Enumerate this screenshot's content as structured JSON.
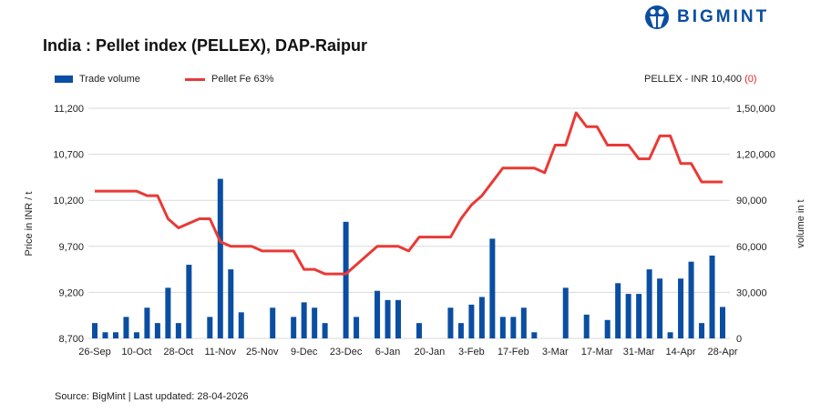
{
  "title": "India : Pellet index (PELLEX), DAP-Raipur",
  "logo_text": "BIGMINT",
  "pellex_label": "PELLEX - INR 10,400 ",
  "pellex_change": "(0)",
  "source": "Source: BigMint | Last updated: 28-04-2026",
  "colors": {
    "bar": "#0a4ea2",
    "line": "#e83a36",
    "change": "#e8232a"
  },
  "chart_data": {
    "type": "bar+line",
    "title": "India : Pellet index (PELLEX), DAP-Raipur",
    "legend": [
      "Trade volume",
      "Pellet Fe 63%"
    ],
    "legend_placement": "top-left",
    "x_tick_labels": [
      "26-Sep",
      "10-Oct",
      "28-Oct",
      "11-Nov",
      "25-Nov",
      "9-Dec",
      "23-Dec",
      "6-Jan",
      "20-Jan",
      "3-Feb",
      "17-Feb",
      "3-Mar",
      "17-Mar",
      "31-Mar",
      "14-Apr",
      "28-Apr"
    ],
    "ylabel_left": "Price in INR / t",
    "ylabel_right": "volume in t",
    "ylim_left": [
      8700,
      11200
    ],
    "yticks_left": [
      "8,700",
      "9,200",
      "9,700",
      "10,200",
      "10,700",
      "11,200"
    ],
    "ylim_right": [
      0,
      150000
    ],
    "yticks_right": [
      "0",
      "30,000",
      "60,000",
      "90,000",
      "1,20,000",
      "1,50,000"
    ],
    "grid": true,
    "series": [
      {
        "name": "Pellet Fe 63%",
        "type": "line",
        "values": [
          10300,
          10300,
          10300,
          10300,
          10300,
          10250,
          10250,
          10000,
          9900,
          9950,
          10000,
          10000,
          9750,
          9700,
          9700,
          9700,
          9650,
          9650,
          9650,
          9650,
          9450,
          9450,
          9400,
          9400,
          9400,
          9500,
          9600,
          9700,
          9700,
          9700,
          9650,
          9800,
          9800,
          9800,
          9800,
          10000,
          10150,
          10250,
          10400,
          10550,
          10550,
          10550,
          10550,
          10500,
          10800,
          10800,
          11150,
          11000,
          11000,
          10800,
          10800,
          10800,
          10650,
          10650,
          10900,
          10900,
          10600,
          10600,
          10400,
          10400,
          10400
        ]
      },
      {
        "name": "Trade volume",
        "type": "bar",
        "values": [
          10000,
          4000,
          4000,
          14000,
          4000,
          20000,
          10000,
          33000,
          10000,
          48000,
          0,
          14000,
          104000,
          45000,
          17000,
          0,
          0,
          20000,
          0,
          14000,
          23500,
          20000,
          10000,
          0,
          76000,
          14000,
          0,
          31000,
          25000,
          25000,
          0,
          10000,
          0,
          0,
          20000,
          10000,
          22000,
          27000,
          65000,
          14000,
          14000,
          20000,
          4000,
          0,
          0,
          33000,
          0,
          15500,
          0,
          12000,
          36000,
          29000,
          29000,
          45000,
          39000,
          4000,
          39000,
          50000,
          10000,
          54000,
          20500
        ]
      }
    ]
  }
}
